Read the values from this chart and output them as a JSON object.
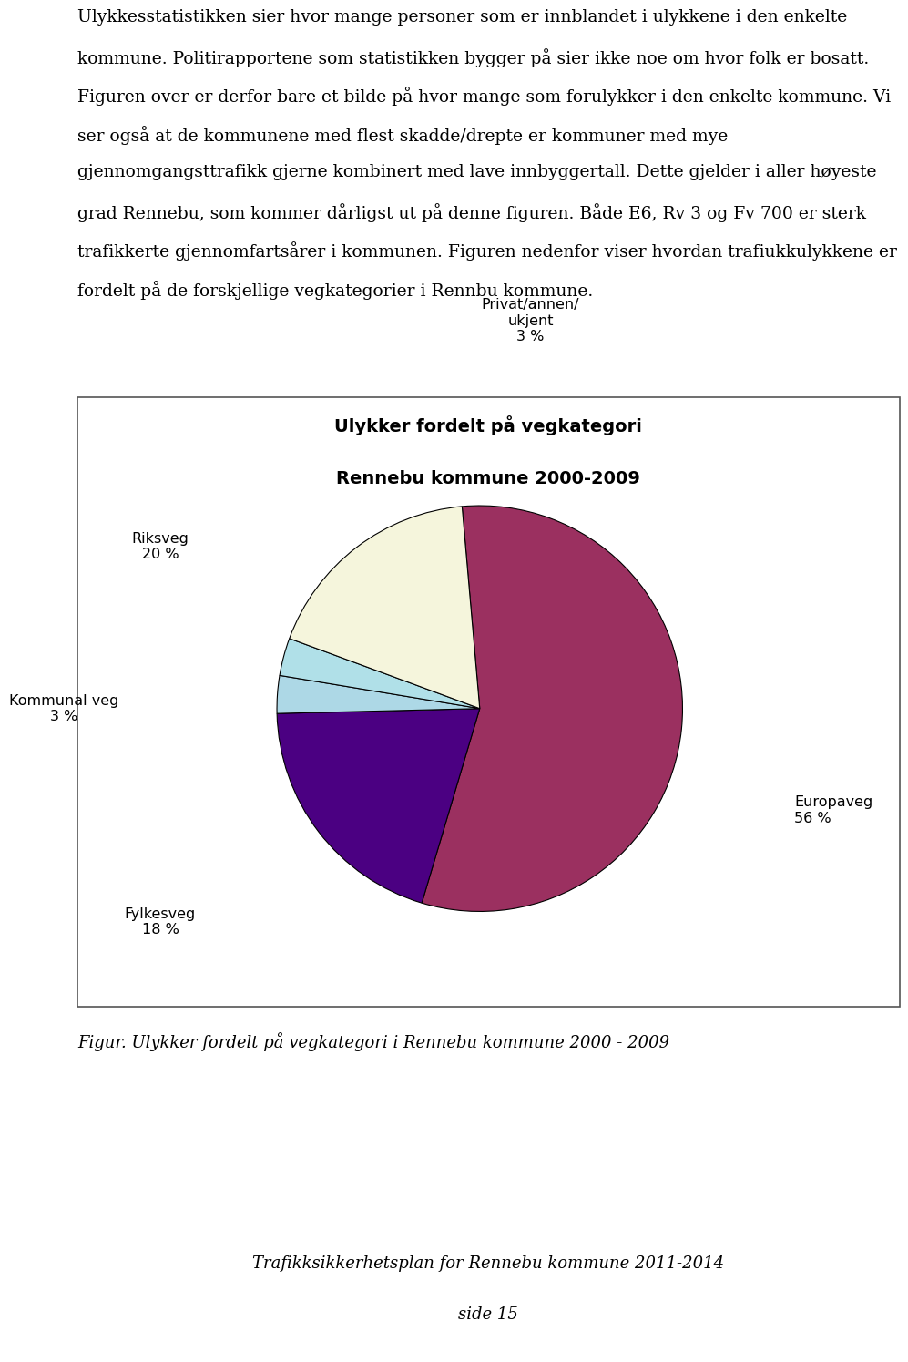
{
  "body_text_lines": [
    "Ulykkesstatistikken sier hvor mange personer som er innblandet i ulykkene i den enkelte",
    "kommune. Politirapportene som statistikken bygger på sier ikke noe om hvor folk er bosatt.",
    "Figuren over er derfor bare et bilde på hvor mange som forulykker i den enkelte kommune. Vi",
    "ser også at de kommunene med flest skadde/drepte er kommuner med mye",
    "gjennomgangsttrafikk gjerne kombinert med lave innbyggertall. Dette gjelder i aller høyeste",
    "grad Rennebu, som kommer dårligst ut på denne figuren. Både E6, Rv 3 og Fv 700 er sterk",
    "trafikkerte gjennomfartsårer i kommunen. Figuren nedenfor viser hvordan trafiukkulykkene er",
    "fordelt på de forskjellige vegkategorier i Rennbu kommune."
  ],
  "chart_title_line1": "Ulykker fordelt på vegkategori",
  "chart_title_line2": "Rennebu kommune 2000-2009",
  "slices": [
    {
      "label": "Europaveg\n56 %",
      "value": 56,
      "color": "#9B3060"
    },
    {
      "label": "Riksveg\n20 %",
      "value": 20,
      "color": "#4B0082"
    },
    {
      "label": "Privat/annen/\nukjent\n3 %",
      "value": 3,
      "color": "#ADD8E6"
    },
    {
      "label": "Kommunal veg\n3 %",
      "value": 3,
      "color": "#B0E0E8"
    },
    {
      "label": "Fylkesveg\n18 %",
      "value": 18,
      "color": "#F5F5DC"
    }
  ],
  "figure_caption": "Figur. Ulykker fordelt på vegkategori i Rennebu kommune 2000 - 2009",
  "footer_line1": "Trafikksikkerhetsplan for Rennebu kommune 2011-2014",
  "footer_line2": "side 15",
  "body_fontsize": 13.5,
  "title_fontsize": 14,
  "caption_fontsize": 13,
  "footer_fontsize": 13,
  "background_color": "#ffffff",
  "box_edge_color": "#555555"
}
